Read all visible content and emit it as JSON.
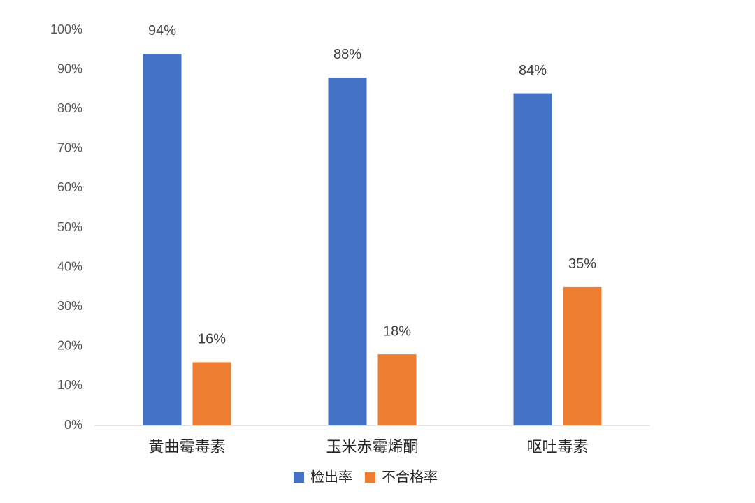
{
  "chart_data": {
    "type": "bar",
    "categories": [
      "黄曲霉毒素",
      "玉米赤霉烯酮",
      "呕吐毒素"
    ],
    "series": [
      {
        "name": "检出率",
        "color": "#4472c4",
        "values": [
          94,
          88,
          84
        ],
        "value_labels": [
          "94%",
          "88%",
          "84%"
        ]
      },
      {
        "name": "不合格率",
        "color": "#ed7d31",
        "values": [
          16,
          18,
          35
        ],
        "value_labels": [
          "16%",
          "18%",
          "35%"
        ]
      }
    ],
    "ylim": [
      0,
      100
    ],
    "yticks": [
      {
        "value": 0,
        "label": "0%"
      },
      {
        "value": 10,
        "label": "10%"
      },
      {
        "value": 20,
        "label": "20%"
      },
      {
        "value": 30,
        "label": "30%"
      },
      {
        "value": 40,
        "label": "40%"
      },
      {
        "value": 50,
        "label": "50%"
      },
      {
        "value": 60,
        "label": "60%"
      },
      {
        "value": 70,
        "label": "70%"
      },
      {
        "value": 80,
        "label": "80%"
      },
      {
        "value": 90,
        "label": "90%"
      },
      {
        "value": 100,
        "label": "100%"
      }
    ],
    "grid": false,
    "legend": "bottom"
  }
}
